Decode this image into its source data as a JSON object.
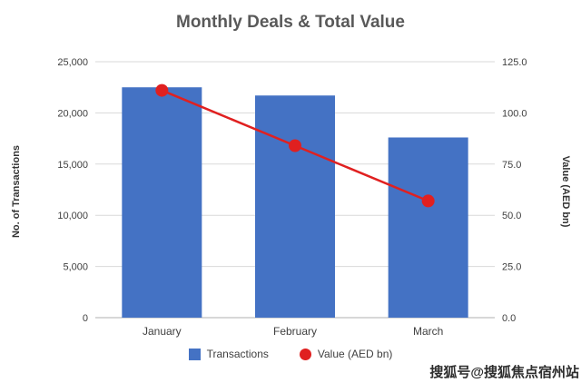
{
  "page": {
    "title": "Monthly Deals & Total Value",
    "watermark": "搜狐号@搜狐焦点宿州站"
  },
  "colors": {
    "bar": "#4472C4",
    "line": "#E02020",
    "grid": "#D9D9D9",
    "axis_line": "#BFBFBF",
    "tick_text": "#404040",
    "title_text": "#595959"
  },
  "chart_data": {
    "type": "bar",
    "title": "Monthly Deals & Total Value",
    "categories": [
      "January",
      "February",
      "March"
    ],
    "series": [
      {
        "name": "Transactions",
        "kind": "bar",
        "axis": "left",
        "values": [
          22500,
          21700,
          17600
        ]
      },
      {
        "name": "Value (AED bn)",
        "kind": "line",
        "axis": "right",
        "values": [
          111.0,
          84.0,
          57.0
        ]
      }
    ],
    "xlabel": "",
    "ylabel_left": "No. of Transactions",
    "ylabel_right": "Value (AED bn)",
    "ylim_left": [
      0,
      25000
    ],
    "ytick_step_left": 5000,
    "ylim_right": [
      0.0,
      125.0
    ],
    "ytick_step_right": 25.0,
    "grid": true,
    "legend_position": "bottom"
  }
}
